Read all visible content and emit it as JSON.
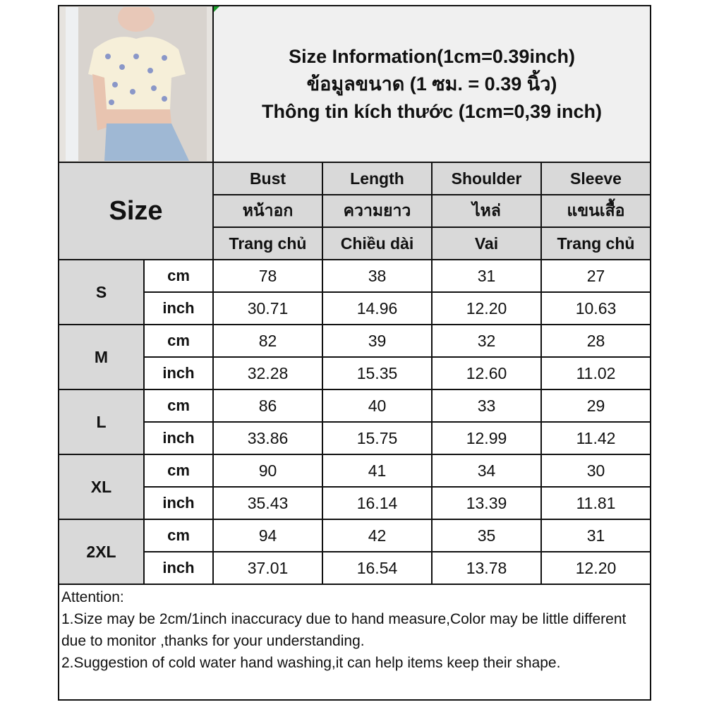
{
  "header": {
    "title_lines": [
      "Size Information(1cm=0.39inch)",
      "ข้อมูลขนาด (1 ซม. = 0.39 นิ้ว)",
      "Thông tin kích thước (1cm=0,39 inch)"
    ]
  },
  "photo": {
    "description_icon": "product-photo"
  },
  "table": {
    "size_label": "Size",
    "columns": [
      {
        "en": "Bust",
        "th": "หน้าอก",
        "vi": "Trang chủ"
      },
      {
        "en": "Length",
        "th": "ความยาว",
        "vi": "Chiều dài"
      },
      {
        "en": "Shoulder",
        "th": "ไหล่",
        "vi": "Vai"
      },
      {
        "en": "Sleeve",
        "th": "แขนเสื้อ",
        "vi": "Trang chủ"
      }
    ],
    "unit_cm": "cm",
    "unit_inch": "inch",
    "rows": [
      {
        "size": "S",
        "cm": [
          "78",
          "38",
          "31",
          "27"
        ],
        "inch": [
          "30.71",
          "14.96",
          "12.20",
          "10.63"
        ]
      },
      {
        "size": "M",
        "cm": [
          "82",
          "39",
          "32",
          "28"
        ],
        "inch": [
          "32.28",
          "15.35",
          "12.60",
          "11.02"
        ]
      },
      {
        "size": "L",
        "cm": [
          "86",
          "40",
          "33",
          "29"
        ],
        "inch": [
          "33.86",
          "15.75",
          "12.99",
          "11.42"
        ]
      },
      {
        "size": "XL",
        "cm": [
          "90",
          "41",
          "34",
          "30"
        ],
        "inch": [
          "35.43",
          "16.14",
          "13.39",
          "11.81"
        ]
      },
      {
        "size": "2XL",
        "cm": [
          "94",
          "42",
          "35",
          "31"
        ],
        "inch": [
          "37.01",
          "16.54",
          "13.78",
          "12.20"
        ]
      }
    ]
  },
  "notes": {
    "heading": "Attention:",
    "lines": [
      "1.Size may be 2cm/1inch inaccuracy due to hand measure,Color may be little different due to monitor ,thanks for your understanding.",
      "2.Suggestion of cold water hand washing,it can help items keep their shape."
    ]
  },
  "colors": {
    "header_gray": "#d9d9d9",
    "title_bg": "#f0f0f0",
    "border": "#111111"
  }
}
